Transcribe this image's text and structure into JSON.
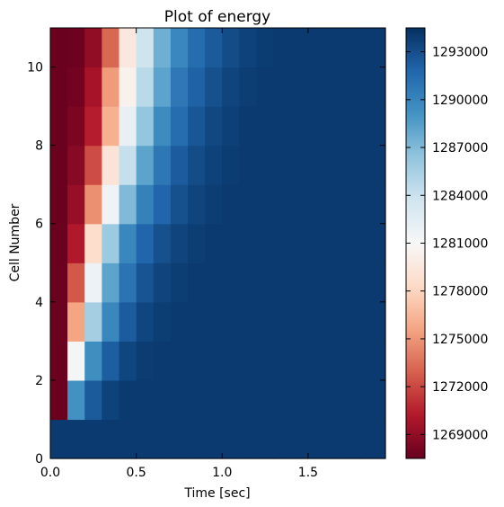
{
  "chart_data": {
    "type": "heatmap",
    "title": "Plot of energy",
    "xlabel": "Time [sec]",
    "ylabel": "Cell Number",
    "xlim": [
      0,
      1.95
    ],
    "ylim": [
      0,
      11
    ],
    "x_step": 0.1,
    "x_ticks": [
      0,
      0.5,
      1.0,
      1.5
    ],
    "x_tick_labels": [
      "0.0",
      "0.5",
      "1.0",
      "1.5"
    ],
    "y_ticks": [
      0,
      2,
      4,
      6,
      8,
      10
    ],
    "y_tick_labels": [
      "0",
      "2",
      "4",
      "6",
      "8",
      "10"
    ],
    "colormap": "RdBu",
    "color_range": [
      1267500,
      1294500
    ],
    "colorbar_ticks": [
      1269000,
      1272000,
      1275000,
      1278000,
      1281000,
      1284000,
      1287000,
      1290000,
      1293000
    ],
    "colorbar_tick_labels": [
      "1269000",
      "1272000",
      "1275000",
      "1278000",
      "1281000",
      "1284000",
      "1287000",
      "1290000",
      "1293000"
    ],
    "rows": [
      {
        "cell": 0,
        "values": [
          1294000,
          1294000,
          1294000,
          1294000,
          1294000,
          1294000,
          1294000,
          1294000,
          1294000,
          1294000,
          1294000,
          1294000,
          1294000,
          1294000,
          1294000,
          1294000,
          1294000,
          1294000,
          1294000,
          1294000
        ]
      },
      {
        "cell": 1,
        "values": [
          1267600,
          1289200,
          1292400,
          1293600,
          1294000,
          1294000,
          1294000,
          1294000,
          1294000,
          1294000,
          1294000,
          1294000,
          1294000,
          1294000,
          1294000,
          1294000,
          1294000,
          1294000,
          1294000,
          1294000
        ]
      },
      {
        "cell": 2,
        "values": [
          1267600,
          1281200,
          1289400,
          1292200,
          1293400,
          1293900,
          1294000,
          1294000,
          1294000,
          1294000,
          1294000,
          1294000,
          1294000,
          1294000,
          1294000,
          1294000,
          1294000,
          1294000,
          1294000,
          1294000
        ]
      },
      {
        "cell": 3,
        "values": [
          1267600,
          1275600,
          1285600,
          1289800,
          1292300,
          1293400,
          1293800,
          1294000,
          1294000,
          1294000,
          1294000,
          1294000,
          1294000,
          1294000,
          1294000,
          1294000,
          1294000,
          1294000,
          1294000,
          1294000
        ]
      },
      {
        "cell": 4,
        "values": [
          1267600,
          1272600,
          1281800,
          1288200,
          1291000,
          1292700,
          1293500,
          1293800,
          1294000,
          1294000,
          1294000,
          1294000,
          1294000,
          1294000,
          1294000,
          1294000,
          1294000,
          1294000,
          1294000,
          1294000
        ]
      },
      {
        "cell": 5,
        "values": [
          1267600,
          1270200,
          1278600,
          1286000,
          1289800,
          1291800,
          1292900,
          1293500,
          1293800,
          1294000,
          1294000,
          1294000,
          1294000,
          1294000,
          1294000,
          1294000,
          1294000,
          1294000,
          1294000,
          1294000
        ]
      },
      {
        "cell": 6,
        "values": [
          1267600,
          1269200,
          1274800,
          1281600,
          1287000,
          1290200,
          1291800,
          1292900,
          1293500,
          1293800,
          1294000,
          1294000,
          1294000,
          1294000,
          1294000,
          1294000,
          1294000,
          1294000,
          1294000,
          1294000
        ]
      },
      {
        "cell": 7,
        "values": [
          1267600,
          1268600,
          1272200,
          1279200,
          1284200,
          1288200,
          1290800,
          1292300,
          1293100,
          1293600,
          1293900,
          1294000,
          1294000,
          1294000,
          1294000,
          1294000,
          1294000,
          1294000,
          1294000,
          1294000
        ]
      },
      {
        "cell": 8,
        "values": [
          1267600,
          1268200,
          1270400,
          1276200,
          1282000,
          1286300,
          1289600,
          1291400,
          1292600,
          1293300,
          1293700,
          1294000,
          1294000,
          1294000,
          1294000,
          1294000,
          1294000,
          1294000,
          1294000,
          1294000
        ]
      },
      {
        "cell": 9,
        "values": [
          1267600,
          1267900,
          1269800,
          1275200,
          1280400,
          1284700,
          1288200,
          1290700,
          1292000,
          1292900,
          1293500,
          1293800,
          1294000,
          1294000,
          1294000,
          1294000,
          1294000,
          1294000,
          1294000,
          1294000
        ]
      },
      {
        "cell": 10,
        "values": [
          1267600,
          1267700,
          1269000,
          1273200,
          1279600,
          1283800,
          1287600,
          1289800,
          1291400,
          1292400,
          1293100,
          1293600,
          1293900,
          1294000,
          1294000,
          1294000,
          1294000,
          1294000,
          1294000,
          1294000
        ]
      }
    ]
  }
}
